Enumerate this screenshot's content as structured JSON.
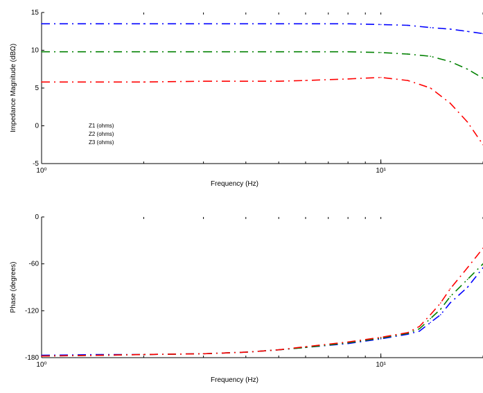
{
  "chart_data": [
    {
      "type": "line",
      "title": "",
      "xlabel": "Frequency (Hz)",
      "ylabel": "Impedance Magnitude (dBΩ)",
      "xscale": "log",
      "xlim": [
        1,
        20
      ],
      "ylim": [
        -5,
        15
      ],
      "xticks": [
        1,
        10
      ],
      "xticklabels": [
        "10⁰",
        "10¹"
      ],
      "yticks": [
        -5,
        0,
        5,
        10,
        15
      ],
      "yticklabels": [
        "-5",
        "0",
        "5",
        "10",
        "15"
      ],
      "grid": false,
      "legend": {
        "placement": "bottom-left",
        "entries": [
          "Z1 (ohms)",
          "Z2 (ohms)",
          "Z3 (ohms)"
        ]
      },
      "series": [
        {
          "color": "#0000ff",
          "style": "dashdot",
          "x": [
            1,
            1.5,
            2,
            5,
            6,
            8,
            10,
            12,
            14,
            16,
            18,
            20
          ],
          "y": [
            13.5,
            13.5,
            13.5,
            13.5,
            13.5,
            13.5,
            13.4,
            13.3,
            13.0,
            12.8,
            12.5,
            12.2
          ]
        },
        {
          "color": "#008000",
          "style": "dashdot",
          "x": [
            1,
            1.5,
            2,
            3,
            5,
            6,
            8,
            10,
            12,
            14,
            16,
            18,
            20
          ],
          "y": [
            9.8,
            9.8,
            9.8,
            9.8,
            9.8,
            9.8,
            9.8,
            9.7,
            9.5,
            9.2,
            8.5,
            7.5,
            6.3
          ]
        },
        {
          "color": "#ff0000",
          "style": "dashdot",
          "x": [
            1,
            1.5,
            2,
            3,
            5,
            6,
            8,
            10,
            12,
            14,
            16,
            18,
            20
          ],
          "y": [
            5.8,
            5.8,
            5.8,
            5.9,
            5.9,
            6.0,
            6.2,
            6.4,
            6.0,
            5.0,
            3.0,
            0.5,
            -2.5
          ]
        }
      ]
    },
    {
      "type": "line",
      "title": "",
      "xlabel": "Frequency (Hz)",
      "ylabel": "Phase (degrees)",
      "xscale": "log",
      "xlim": [
        1,
        20
      ],
      "ylim": [
        -180,
        0
      ],
      "xticks": [
        1,
        10
      ],
      "xticklabels": [
        "10⁰",
        "10¹"
      ],
      "yticks": [
        -180,
        -120,
        -60,
        0
      ],
      "yticklabels": [
        "-180",
        "-120",
        "-60",
        "0"
      ],
      "grid": false,
      "series": [
        {
          "color": "#0000ff",
          "style": "dashdot",
          "x": [
            1,
            1.5,
            2,
            3,
            4,
            5,
            6,
            8,
            10,
            12,
            13,
            14,
            15,
            16,
            18,
            20
          ],
          "y": [
            -177,
            -176,
            -176,
            -175,
            -173,
            -170,
            -167,
            -162,
            -156,
            -150,
            -146,
            -135,
            -125,
            -110,
            -90,
            -65
          ]
        },
        {
          "color": "#008000",
          "style": "dashdot",
          "x": [
            1,
            1.5,
            2,
            3,
            4,
            5,
            6,
            8,
            10,
            12,
            13,
            14,
            15,
            16,
            18,
            20
          ],
          "y": [
            -178,
            -177,
            -176,
            -175,
            -173,
            -170,
            -167,
            -161,
            -155,
            -149,
            -143,
            -130,
            -118,
            -102,
            -80,
            -60
          ]
        },
        {
          "color": "#ff0000",
          "style": "dashdot",
          "x": [
            1,
            1.5,
            2,
            3,
            4,
            5,
            6,
            8,
            10,
            12,
            13,
            14,
            15,
            16,
            18,
            20
          ],
          "y": [
            -178,
            -177,
            -176,
            -175,
            -173,
            -170,
            -166,
            -160,
            -154,
            -148,
            -140,
            -125,
            -110,
            -92,
            -65,
            -40
          ]
        }
      ]
    }
  ]
}
